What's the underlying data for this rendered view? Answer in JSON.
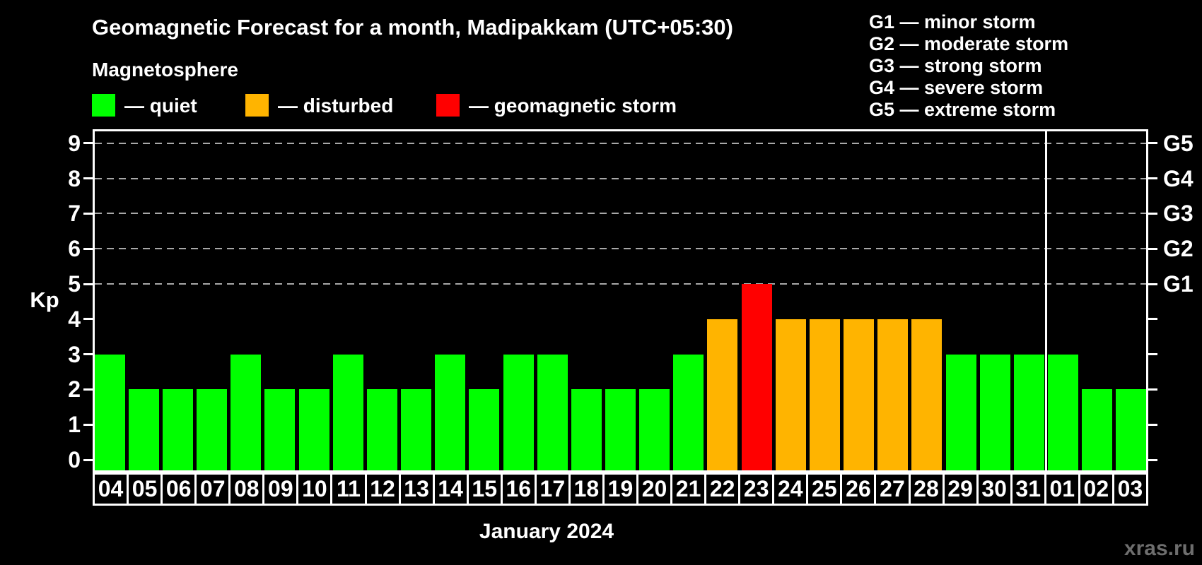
{
  "title": "Geomagnetic Forecast for a month, Madipakkam (UTC+05:30)",
  "subtitle": "Magnetosphere",
  "legend": {
    "items": [
      {
        "key": "quiet",
        "label": "— quiet",
        "color": "#00ff00"
      },
      {
        "key": "disturbed",
        "label": "— disturbed",
        "color": "#ffb400"
      },
      {
        "key": "storm",
        "label": "— geomagnetic storm",
        "color": "#ff0000"
      }
    ]
  },
  "storm_scale_legend": {
    "lines": [
      "G1 — minor storm",
      "G2 — moderate storm",
      "G3 — strong storm",
      "G4 — severe storm",
      "G5 — extreme storm"
    ]
  },
  "watermark": "xras.ru",
  "chart_data": {
    "type": "bar",
    "title": "Geomagnetic Forecast for a month, Madipakkam (UTC+05:30)",
    "xlabel": "January 2024",
    "ylabel": "Kp",
    "ylim": [
      0,
      9
    ],
    "yticks": [
      0,
      1,
      2,
      3,
      4,
      5,
      6,
      7,
      8,
      9
    ],
    "grid_levels": [
      5,
      6,
      7,
      8,
      9
    ],
    "grid_style": "dashed",
    "grid_color": "#a8a8a8",
    "axis_color": "#ffffff",
    "right_axis_labels": [
      {
        "kp": 5,
        "text": "G1"
      },
      {
        "kp": 6,
        "text": "G2"
      },
      {
        "kp": 7,
        "text": "G3"
      },
      {
        "kp": 8,
        "text": "G4"
      },
      {
        "kp": 9,
        "text": "G5"
      }
    ],
    "categories": [
      "04",
      "05",
      "06",
      "07",
      "08",
      "09",
      "10",
      "11",
      "12",
      "13",
      "14",
      "15",
      "16",
      "17",
      "18",
      "19",
      "20",
      "21",
      "22",
      "23",
      "24",
      "25",
      "26",
      "27",
      "28",
      "29",
      "30",
      "31",
      "01",
      "02",
      "03"
    ],
    "values": [
      3,
      2,
      2,
      2,
      3,
      2,
      2,
      3,
      2,
      2,
      3,
      2,
      3,
      3,
      2,
      2,
      2,
      3,
      4,
      5,
      4,
      4,
      4,
      4,
      4,
      3,
      3,
      3,
      3,
      2,
      2
    ],
    "statuses": [
      "quiet",
      "quiet",
      "quiet",
      "quiet",
      "quiet",
      "quiet",
      "quiet",
      "quiet",
      "quiet",
      "quiet",
      "quiet",
      "quiet",
      "quiet",
      "quiet",
      "quiet",
      "quiet",
      "quiet",
      "quiet",
      "disturbed",
      "storm",
      "disturbed",
      "disturbed",
      "disturbed",
      "disturbed",
      "disturbed",
      "quiet",
      "quiet",
      "quiet",
      "quiet",
      "quiet",
      "quiet"
    ],
    "status_colors": {
      "quiet": "#00ff00",
      "disturbed": "#ffb400",
      "storm": "#ff0000"
    },
    "month_separator_after_index": 27
  }
}
